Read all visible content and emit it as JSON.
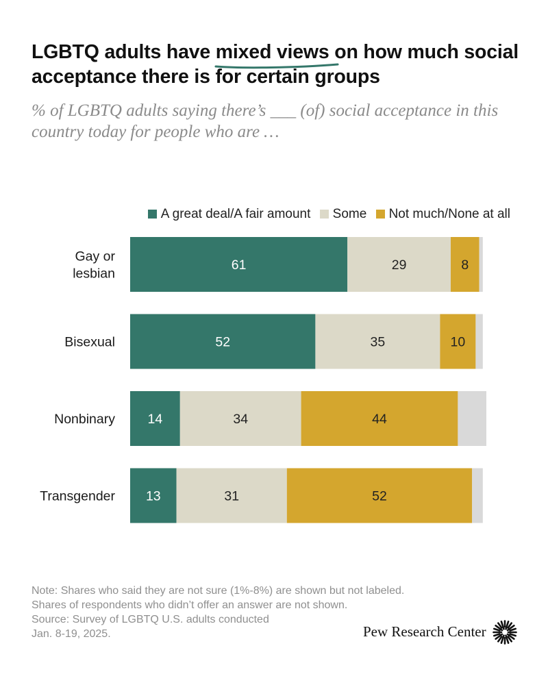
{
  "header": {
    "title_part1": "LGBTQ adults have",
    "title_highlight": "mixed views",
    "title_part2": "on how much social acceptance there is for certain groups",
    "subtitle": "% of LGBTQ adults saying there’s ___ (of) social acceptance in this country today for people who are …"
  },
  "chart_data": {
    "type": "bar",
    "orientation": "horizontal",
    "stacked": true,
    "categories": [
      "Gay or lesbian",
      "Bisexual",
      "Nonbinary",
      "Transgender"
    ],
    "category_lines": [
      [
        "Gay or",
        "lesbian"
      ],
      [
        "Bisexual"
      ],
      [
        "Nonbinary"
      ],
      [
        "Transgender"
      ]
    ],
    "series": [
      {
        "name": "A great deal/A fair amount",
        "values": [
          61,
          52,
          14,
          13
        ],
        "color": "#34776a",
        "label_color": "#ffffff",
        "labeled": true
      },
      {
        "name": "Some",
        "values": [
          29,
          35,
          34,
          31
        ],
        "color": "#dcd9c8",
        "label_color": "#222222",
        "labeled": true
      },
      {
        "name": "Not much/None at all",
        "values": [
          8,
          10,
          44,
          52
        ],
        "color": "#d4a62e",
        "label_color": "#222222",
        "labeled": true
      },
      {
        "name": "Not sure",
        "values": [
          1,
          2,
          8,
          3
        ],
        "color": "#d9d9d9",
        "label_color": "#222222",
        "labeled": false
      }
    ],
    "xlim": [
      0,
      100
    ],
    "legend_position": "top-right"
  },
  "footer": {
    "note_lines": [
      "Note: Shares who said they are not sure (1%-8%) are shown but not labeled.",
      "Shares of respondents who didn’t offer an answer are not shown.",
      "Source: Survey of LGBTQ U.S. adults conducted",
      "Jan. 8-19, 2025."
    ],
    "brand": "Pew Research Center"
  }
}
